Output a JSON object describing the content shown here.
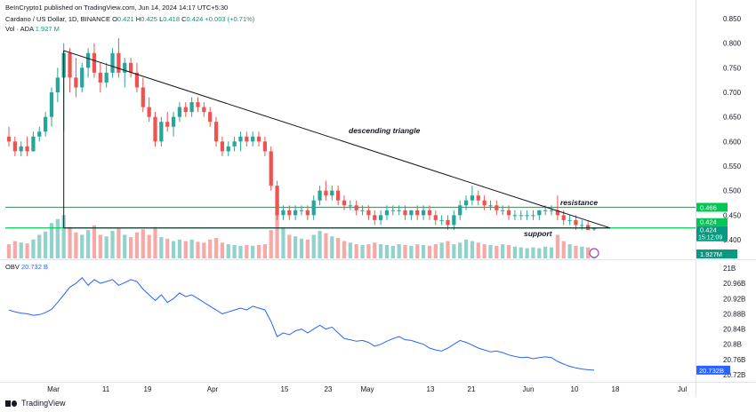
{
  "header": {
    "publisher": "BeInCrypto1 published on TradingView.com, Jun 14, 2024 14:17 UTC+5:30",
    "symbol": "Cardano / US Dollar, 1D, BINANCE",
    "ohlc": {
      "o_label": "O",
      "o": "0.421",
      "h_label": "H",
      "h": "0.425",
      "l_label": "L",
      "l": "0.418",
      "c_label": "C",
      "c": "0.424",
      "change": "+0.003 (+0.71%)"
    },
    "vol_label": "Vol · ADA",
    "vol_value": "1.927 M"
  },
  "footer": {
    "brand": "TradingView"
  },
  "colors": {
    "up": "#26a69a",
    "down": "#ef5350",
    "green_line": "#00c853",
    "obv": "#2962ff",
    "label_bg": "#00c853"
  },
  "chart_data": [
    {
      "type": "candlestick",
      "title": "Cardano / US Dollar, 1D, BINANCE",
      "y_ticks": [
        "0.850",
        "0.800",
        "0.750",
        "0.700",
        "0.650",
        "0.600",
        "0.550",
        "0.500",
        "0.450",
        "0.400"
      ],
      "ylim": [
        0.4,
        0.85
      ],
      "x_ticks": [
        "Mar",
        "11",
        "19",
        "Apr",
        "15",
        "23",
        "May",
        "13",
        "21",
        "Jun",
        "10",
        "18",
        "Jul"
      ],
      "price_labels": [
        "0.466",
        "0.424",
        "15:12:09",
        "0.424"
      ],
      "volume_label": "1.927M",
      "annotations": [
        "descending triangle",
        "resistance",
        "support"
      ],
      "resistance": 0.466,
      "support": 0.424,
      "triangle": {
        "start": 0.785,
        "apex": 0.424
      },
      "candles": [
        [
          0.61,
          0.63,
          0.59,
          0.6
        ],
        [
          0.6,
          0.61,
          0.57,
          0.58
        ],
        [
          0.58,
          0.6,
          0.57,
          0.59
        ],
        [
          0.59,
          0.61,
          0.57,
          0.58
        ],
        [
          0.58,
          0.62,
          0.58,
          0.61
        ],
        [
          0.61,
          0.63,
          0.6,
          0.62
        ],
        [
          0.62,
          0.66,
          0.61,
          0.65
        ],
        [
          0.65,
          0.71,
          0.63,
          0.7
        ],
        [
          0.7,
          0.75,
          0.68,
          0.73
        ],
        [
          0.73,
          0.8,
          0.62,
          0.78
        ],
        [
          0.78,
          0.79,
          0.7,
          0.73
        ],
        [
          0.73,
          0.77,
          0.69,
          0.71
        ],
        [
          0.71,
          0.76,
          0.7,
          0.75
        ],
        [
          0.75,
          0.79,
          0.73,
          0.78
        ],
        [
          0.78,
          0.8,
          0.73,
          0.74
        ],
        [
          0.74,
          0.76,
          0.7,
          0.72
        ],
        [
          0.72,
          0.76,
          0.71,
          0.74
        ],
        [
          0.74,
          0.79,
          0.73,
          0.78
        ],
        [
          0.78,
          0.81,
          0.73,
          0.74
        ],
        [
          0.74,
          0.77,
          0.71,
          0.76
        ],
        [
          0.76,
          0.77,
          0.73,
          0.74
        ],
        [
          0.74,
          0.76,
          0.7,
          0.71
        ],
        [
          0.71,
          0.73,
          0.66,
          0.67
        ],
        [
          0.67,
          0.69,
          0.64,
          0.65
        ],
        [
          0.65,
          0.66,
          0.59,
          0.6
        ],
        [
          0.6,
          0.65,
          0.59,
          0.64
        ],
        [
          0.64,
          0.66,
          0.62,
          0.63
        ],
        [
          0.63,
          0.66,
          0.61,
          0.65
        ],
        [
          0.65,
          0.68,
          0.64,
          0.67
        ],
        [
          0.67,
          0.68,
          0.65,
          0.66
        ],
        [
          0.66,
          0.69,
          0.65,
          0.68
        ],
        [
          0.68,
          0.69,
          0.66,
          0.67
        ],
        [
          0.67,
          0.68,
          0.65,
          0.66
        ],
        [
          0.66,
          0.67,
          0.63,
          0.64
        ],
        [
          0.64,
          0.65,
          0.59,
          0.6
        ],
        [
          0.6,
          0.61,
          0.57,
          0.58
        ],
        [
          0.58,
          0.6,
          0.57,
          0.59
        ],
        [
          0.59,
          0.61,
          0.58,
          0.6
        ],
        [
          0.6,
          0.62,
          0.58,
          0.61
        ],
        [
          0.61,
          0.62,
          0.59,
          0.6
        ],
        [
          0.6,
          0.62,
          0.59,
          0.61
        ],
        [
          0.61,
          0.62,
          0.59,
          0.6
        ],
        [
          0.6,
          0.61,
          0.57,
          0.58
        ],
        [
          0.58,
          0.59,
          0.5,
          0.51
        ],
        [
          0.51,
          0.52,
          0.44,
          0.45
        ],
        [
          0.45,
          0.47,
          0.44,
          0.46
        ],
        [
          0.46,
          0.47,
          0.44,
          0.45
        ],
        [
          0.45,
          0.47,
          0.44,
          0.46
        ],
        [
          0.46,
          0.47,
          0.45,
          0.46
        ],
        [
          0.46,
          0.47,
          0.44,
          0.45
        ],
        [
          0.45,
          0.49,
          0.44,
          0.48
        ],
        [
          0.48,
          0.51,
          0.47,
          0.5
        ],
        [
          0.5,
          0.52,
          0.48,
          0.49
        ],
        [
          0.49,
          0.51,
          0.48,
          0.5
        ],
        [
          0.5,
          0.51,
          0.47,
          0.48
        ],
        [
          0.48,
          0.49,
          0.46,
          0.47
        ],
        [
          0.47,
          0.48,
          0.46,
          0.47
        ],
        [
          0.47,
          0.48,
          0.45,
          0.46
        ],
        [
          0.46,
          0.47,
          0.45,
          0.46
        ],
        [
          0.46,
          0.47,
          0.44,
          0.45
        ],
        [
          0.45,
          0.46,
          0.43,
          0.44
        ],
        [
          0.44,
          0.46,
          0.43,
          0.45
        ],
        [
          0.45,
          0.47,
          0.44,
          0.46
        ],
        [
          0.46,
          0.47,
          0.45,
          0.46
        ],
        [
          0.46,
          0.47,
          0.45,
          0.46
        ],
        [
          0.46,
          0.47,
          0.44,
          0.45
        ],
        [
          0.45,
          0.46,
          0.44,
          0.46
        ],
        [
          0.46,
          0.47,
          0.44,
          0.45
        ],
        [
          0.45,
          0.47,
          0.44,
          0.46
        ],
        [
          0.46,
          0.47,
          0.44,
          0.45
        ],
        [
          0.45,
          0.46,
          0.43,
          0.44
        ],
        [
          0.44,
          0.45,
          0.43,
          0.44
        ],
        [
          0.44,
          0.45,
          0.42,
          0.43
        ],
        [
          0.43,
          0.46,
          0.42,
          0.45
        ],
        [
          0.45,
          0.48,
          0.44,
          0.47
        ],
        [
          0.47,
          0.49,
          0.46,
          0.48
        ],
        [
          0.48,
          0.51,
          0.47,
          0.49
        ],
        [
          0.49,
          0.5,
          0.47,
          0.48
        ],
        [
          0.48,
          0.49,
          0.46,
          0.47
        ],
        [
          0.47,
          0.48,
          0.46,
          0.47
        ],
        [
          0.47,
          0.48,
          0.45,
          0.46
        ],
        [
          0.46,
          0.47,
          0.45,
          0.46
        ],
        [
          0.46,
          0.47,
          0.44,
          0.45
        ],
        [
          0.45,
          0.46,
          0.44,
          0.45
        ],
        [
          0.45,
          0.46,
          0.44,
          0.45
        ],
        [
          0.45,
          0.46,
          0.44,
          0.45
        ],
        [
          0.45,
          0.46,
          0.44,
          0.45
        ],
        [
          0.45,
          0.46,
          0.44,
          0.46
        ],
        [
          0.46,
          0.47,
          0.45,
          0.46
        ],
        [
          0.46,
          0.47,
          0.45,
          0.46
        ],
        [
          0.46,
          0.49,
          0.44,
          0.45
        ],
        [
          0.45,
          0.46,
          0.43,
          0.44
        ],
        [
          0.44,
          0.45,
          0.43,
          0.44
        ],
        [
          0.44,
          0.45,
          0.42,
          0.43
        ],
        [
          0.43,
          0.44,
          0.42,
          0.43
        ],
        [
          0.43,
          0.44,
          0.42,
          0.42
        ],
        [
          0.421,
          0.425,
          0.418,
          0.424
        ]
      ],
      "volume": [
        18,
        22,
        20,
        19,
        24,
        30,
        34,
        45,
        50,
        55,
        40,
        33,
        30,
        36,
        42,
        30,
        28,
        35,
        38,
        30,
        27,
        33,
        37,
        30,
        40,
        27,
        25,
        22,
        24,
        22,
        24,
        21,
        20,
        24,
        26,
        20,
        18,
        17,
        16,
        17,
        16,
        17,
        18,
        36,
        70,
        38,
        30,
        28,
        25,
        24,
        30,
        35,
        32,
        28,
        26,
        22,
        20,
        18,
        17,
        18,
        20,
        18,
        17,
        16,
        18,
        17,
        16,
        18,
        17,
        16,
        18,
        20,
        22,
        18,
        20,
        24,
        22,
        20,
        18,
        17,
        16,
        18,
        17,
        15,
        14,
        13,
        14,
        13,
        15,
        14,
        30,
        22,
        18,
        16,
        15,
        14,
        13
      ]
    },
    {
      "type": "line",
      "title": "OBV",
      "series_value": "20.732 B",
      "y_ticks": [
        "21B",
        "20.96B",
        "20.92B",
        "20.88B",
        "20.84B",
        "20.8B",
        "20.76B",
        "20.72B"
      ],
      "ylim": [
        20.72,
        21.0
      ],
      "current_label": "20.732B",
      "values": [
        20.89,
        20.885,
        20.882,
        20.88,
        20.876,
        20.878,
        20.883,
        20.892,
        20.91,
        20.93,
        20.95,
        20.96,
        20.975,
        20.955,
        20.97,
        20.96,
        20.965,
        20.97,
        20.955,
        20.962,
        20.97,
        20.965,
        20.945,
        20.93,
        20.915,
        20.93,
        20.91,
        20.92,
        20.935,
        20.925,
        20.93,
        20.92,
        20.91,
        20.9,
        20.89,
        20.88,
        20.885,
        20.89,
        20.895,
        20.89,
        20.9,
        20.895,
        20.89,
        20.86,
        20.82,
        20.83,
        20.825,
        20.835,
        20.84,
        20.83,
        20.84,
        20.85,
        20.84,
        20.845,
        20.83,
        20.815,
        20.812,
        20.808,
        20.81,
        20.805,
        20.795,
        20.8,
        20.808,
        20.815,
        20.82,
        20.812,
        20.81,
        20.805,
        20.8,
        20.79,
        20.785,
        20.782,
        20.79,
        20.8,
        20.81,
        20.805,
        20.798,
        20.79,
        20.785,
        20.78,
        20.782,
        20.778,
        20.772,
        20.768,
        20.765,
        20.766,
        20.762,
        20.765,
        20.767,
        20.765,
        20.755,
        20.748,
        20.742,
        20.738,
        20.735,
        20.733,
        20.732
      ]
    }
  ]
}
